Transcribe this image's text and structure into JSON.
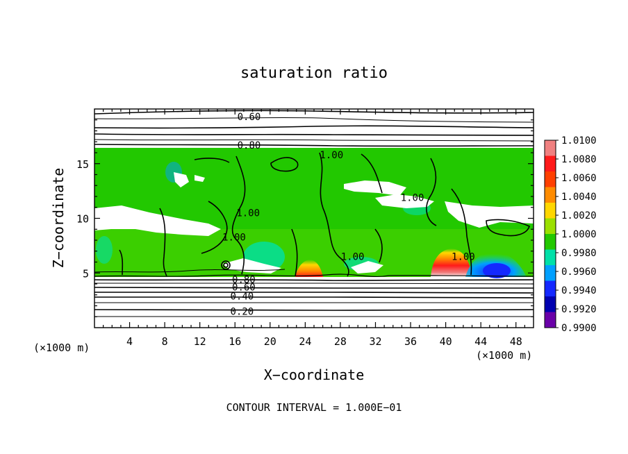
{
  "chart_data": {
    "type": "heatmap",
    "title": "saturation ratio",
    "xlabel": "X−coordinate",
    "ylabel": "Z−coordinate",
    "x_unit_left": "(×1000 m)",
    "x_unit_right": "(×1000 m)",
    "xlim": [
      0,
      50
    ],
    "ylim": [
      0,
      20
    ],
    "x_ticks": [
      4,
      8,
      12,
      16,
      20,
      24,
      28,
      32,
      36,
      40,
      44,
      48
    ],
    "y_ticks": [
      5,
      10,
      15
    ],
    "colorbar": {
      "labels": [
        "1.0100",
        "1.0080",
        "1.0060",
        "1.0040",
        "1.0020",
        "1.0000",
        "0.9980",
        "0.9960",
        "0.9940",
        "0.9920",
        "0.9900"
      ],
      "colors": [
        "#f08080",
        "#ff1a1a",
        "#ff4000",
        "#ff8c00",
        "#ffd700",
        "#9be000",
        "#22c800",
        "#00e0a8",
        "#00a0ff",
        "#1428ff",
        "#0000b0",
        "#6a00a8"
      ]
    },
    "field_band": {
      "z_bottom": 4.6,
      "z_top": 16.3
    },
    "contour_labels": [
      {
        "text": "0.60",
        "x": 17.6,
        "z": 19.3
      },
      {
        "text": "0.80",
        "x": 17.6,
        "z": 16.7
      },
      {
        "text": "1.00",
        "x": 27.0,
        "z": 15.8
      },
      {
        "text": "1.00",
        "x": 36.2,
        "z": 11.9
      },
      {
        "text": "1.00",
        "x": 17.5,
        "z": 10.5
      },
      {
        "text": "1.00",
        "x": 15.9,
        "z": 8.3
      },
      {
        "text": "1.00",
        "x": 29.4,
        "z": 6.5
      },
      {
        "text": "1.00",
        "x": 42.0,
        "z": 6.5
      },
      {
        "text": "0.80",
        "x": 17.0,
        "z": 4.4
      },
      {
        "text": "0.60",
        "x": 17.0,
        "z": 3.7
      },
      {
        "text": "0.40",
        "x": 16.8,
        "z": 2.9
      },
      {
        "text": "0.20",
        "x": 16.8,
        "z": 1.5
      }
    ],
    "contour_interval_text": "CONTOUR INTERVAL = 1.000E−01"
  }
}
